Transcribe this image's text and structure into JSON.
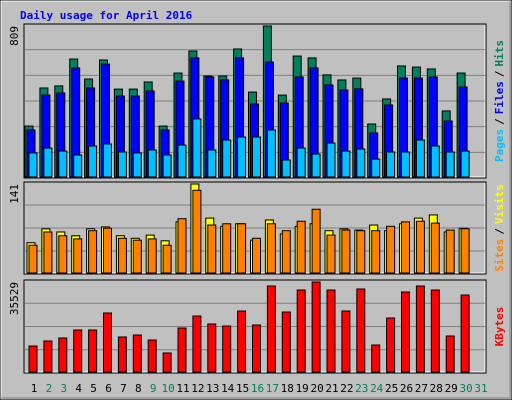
{
  "chart_data": {
    "type": "bar",
    "title": "Daily usage for April 2016",
    "legend_separator": "/",
    "categories": [
      "1",
      "2",
      "3",
      "4",
      "5",
      "6",
      "7",
      "8",
      "9",
      "10",
      "11",
      "12",
      "13",
      "14",
      "15",
      "16",
      "17",
      "18",
      "19",
      "20",
      "21",
      "22",
      "23",
      "24",
      "25",
      "26",
      "27",
      "28",
      "29",
      "30",
      "31"
    ],
    "category_colors": [
      "#000000",
      "#008060",
      "#008060",
      "#000000",
      "#000000",
      "#000000",
      "#000000",
      "#000000",
      "#008060",
      "#008060",
      "#000000",
      "#000000",
      "#000000",
      "#000000",
      "#000000",
      "#008060",
      "#008060",
      "#000000",
      "#000000",
      "#000000",
      "#000000",
      "#000000",
      "#008060",
      "#008060",
      "#000000",
      "#000000",
      "#000000",
      "#000000",
      "#000000",
      "#008060",
      "#008060"
    ],
    "panels": [
      {
        "ylim": [
          0,
          809
        ],
        "yticks": [
          809
        ],
        "grid": 6,
        "series": [
          {
            "name": "Hits",
            "color": "#00805c",
            "values": [
              273,
              477,
              488,
              632,
              525,
              627,
              471,
              471,
              509,
              273,
              557,
              675,
              541,
              541,
              686,
              455,
              809,
              439,
              648,
              638,
              547,
              520,
              530,
              284,
              418,
              595,
              589,
              579,
              354,
              557,
              null
            ]
          },
          {
            "name": "Files",
            "color": "#0000ff",
            "values": [
              252,
              439,
              450,
              584,
              477,
              605,
              434,
              434,
              461,
              252,
              514,
              638,
              536,
              520,
              638,
              391,
              616,
              396,
              536,
              584,
              493,
              466,
              472,
              236,
              386,
              530,
              530,
              536,
              300,
              482,
              null
            ]
          },
          {
            "name": "Pages",
            "color": "#00c0ff",
            "values": [
              129,
              155,
              139,
              118,
              166,
              177,
              134,
              129,
              145,
              118,
              171,
              311,
              145,
              198,
              214,
              214,
              252,
              91,
              155,
              123,
              182,
              139,
              150,
              96,
              134,
              134,
              198,
              166,
              134,
              139,
              null
            ]
          }
        ]
      },
      {
        "ylim": [
          0,
          141
        ],
        "yticks": [
          141
        ],
        "grid": 4,
        "series": [
          {
            "name": "Visits",
            "color": "#ffff00",
            "values": [
              48,
              70,
              65,
              59,
              70,
              73,
              59,
              55,
              60,
              51,
              81,
              141,
              87,
              74,
              78,
              52,
              84,
              62,
              74,
              78,
              67,
              70,
              68,
              76,
              67,
              78,
              87,
              92,
              65,
              71,
              null
            ]
          },
          {
            "name": "Sites",
            "color": "#ff8000",
            "values": [
              44,
              65,
              59,
              54,
              67,
              71,
              55,
              52,
              54,
              44,
              86,
              131,
              76,
              78,
              78,
              55,
              78,
              67,
              82,
              101,
              60,
              68,
              67,
              67,
              74,
              81,
              82,
              79,
              68,
              70,
              null
            ]
          }
        ]
      },
      {
        "ylim": [
          0,
          35529
        ],
        "yticks": [
          35529
        ],
        "grid": 4,
        "series": [
          {
            "name": "KBytes",
            "color": "#ff0000",
            "values": [
              10264,
              12238,
              13423,
              16581,
              16581,
              23292,
              13818,
              14607,
              12633,
              7501,
              17370,
              22107,
              18950,
              18160,
              24081,
              18554,
              33950,
              23687,
              32372,
              35529,
              32372,
              24081,
              32767,
              10659,
              21318,
              31582,
              33950,
              32372,
              14212,
              30398,
              null
            ]
          }
        ]
      }
    ]
  }
}
